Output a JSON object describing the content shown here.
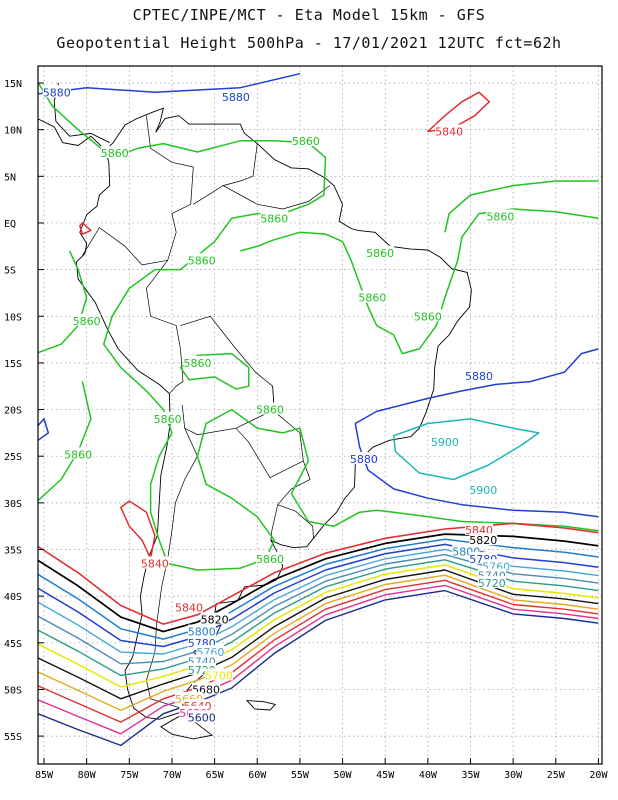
{
  "title_line1": "CPTEC/INPE/MCT -  Eta Model 15km - GFS",
  "title_line2": "Geopotential Height 500hPa - 17/01/2021 12UTC fct=62h",
  "lat_labels": [
    "15N",
    "10N",
    "5N",
    "EQ",
    "5S",
    "10S",
    "15S",
    "20S",
    "25S",
    "30S",
    "35S",
    "40S",
    "45S",
    "50S",
    "55S"
  ],
  "lon_labels": [
    "85W",
    "80W",
    "75W",
    "70W",
    "65W",
    "60W",
    "55W",
    "50W",
    "45W",
    "40W",
    "35W",
    "30W",
    "25W",
    "20W"
  ],
  "colors": {
    "5900": "#19b8b8",
    "5880": "#1f3fcf",
    "5860": "#22c422",
    "5840": "#e03030",
    "5820": "#000000",
    "5800": "#1f7fcf",
    "5780": "#1f3fcf",
    "5760": "#4aa8d8",
    "5740": "#4a8ab8",
    "5720": "#2a9a8a",
    "5700": "#e8e810",
    "5680": "#111111",
    "5660": "#e8a820",
    "5640": "#e03030",
    "5620": "#e03090",
    "5600": "#1a2a8a",
    "coast": "#000000"
  },
  "contour_labels": [
    {
      "text": "5880",
      "color_key": "5880",
      "lon": -83.5,
      "lat": 14.0
    },
    {
      "text": "5880",
      "color_key": "5880",
      "lon": -62.5,
      "lat": 13.5
    },
    {
      "text": "5840",
      "color_key": "5840",
      "lon": -37.5,
      "lat": 9.8
    },
    {
      "text": "5860",
      "color_key": "5860",
      "lon": -54.3,
      "lat": 8.8
    },
    {
      "text": "5860",
      "color_key": "5860",
      "lon": -76.7,
      "lat": 7.5
    },
    {
      "text": "5860",
      "color_key": "5860",
      "lon": -58.0,
      "lat": 0.5
    },
    {
      "text": "5860",
      "color_key": "5860",
      "lon": -31.5,
      "lat": 0.7
    },
    {
      "text": "5860",
      "color_key": "5860",
      "lon": -45.6,
      "lat": -3.2
    },
    {
      "text": "5860",
      "color_key": "5860",
      "lon": -66.5,
      "lat": -4.0
    },
    {
      "text": "5860",
      "color_key": "5860",
      "lon": -46.5,
      "lat": -8.0
    },
    {
      "text": "5860",
      "color_key": "5860",
      "lon": -80.0,
      "lat": -10.5
    },
    {
      "text": "5860",
      "color_key": "5860",
      "lon": -40.0,
      "lat": -10.0
    },
    {
      "text": "5860",
      "color_key": "5860",
      "lon": -67.0,
      "lat": -15.0
    },
    {
      "text": "5880",
      "color_key": "5880",
      "lon": -34.0,
      "lat": -16.4
    },
    {
      "text": "5860",
      "color_key": "5860",
      "lon": -70.5,
      "lat": -21.0
    },
    {
      "text": "5860",
      "color_key": "5860",
      "lon": -58.5,
      "lat": -20.0
    },
    {
      "text": "5900",
      "color_key": "5900",
      "lon": -38.0,
      "lat": -23.5
    },
    {
      "text": "5860",
      "color_key": "5860",
      "lon": -81.0,
      "lat": -24.8
    },
    {
      "text": "5880",
      "color_key": "5880",
      "lon": -47.5,
      "lat": -25.3
    },
    {
      "text": "5900",
      "color_key": "5900",
      "lon": -33.5,
      "lat": -28.6
    },
    {
      "text": "5840",
      "color_key": "5840",
      "lon": -34.0,
      "lat": -32.9
    },
    {
      "text": "5820",
      "color_key": "5820",
      "lon": -33.5,
      "lat": -34.0
    },
    {
      "text": "5800",
      "color_key": "5800",
      "lon": -35.5,
      "lat": -35.2
    },
    {
      "text": "5780",
      "color_key": "5780",
      "lon": -33.5,
      "lat": -36.0
    },
    {
      "text": "5760",
      "color_key": "5760",
      "lon": -32.0,
      "lat": -36.8
    },
    {
      "text": "5740",
      "color_key": "5740",
      "lon": -32.5,
      "lat": -37.8
    },
    {
      "text": "5720",
      "color_key": "5720",
      "lon": -32.5,
      "lat": -38.6
    },
    {
      "text": "5840",
      "color_key": "5840",
      "lon": -72.0,
      "lat": -36.5
    },
    {
      "text": "5860",
      "color_key": "5860",
      "lon": -58.5,
      "lat": -36.0
    },
    {
      "text": "5840",
      "color_key": "5840",
      "lon": -68.0,
      "lat": -41.2
    },
    {
      "text": "5820",
      "color_key": "5820",
      "lon": -65.0,
      "lat": -42.5
    },
    {
      "text": "5800",
      "color_key": "5800",
      "lon": -66.5,
      "lat": -43.8
    },
    {
      "text": "5780",
      "color_key": "5780",
      "lon": -66.5,
      "lat": -45.0
    },
    {
      "text": "5760",
      "color_key": "5760",
      "lon": -65.5,
      "lat": -46.0
    },
    {
      "text": "5740",
      "color_key": "5740",
      "lon": -66.5,
      "lat": -47.0
    },
    {
      "text": "5720",
      "color_key": "5720",
      "lon": -66.5,
      "lat": -47.9
    },
    {
      "text": "5700",
      "color_key": "5700",
      "lon": -64.5,
      "lat": -48.5
    },
    {
      "text": "5680",
      "color_key": "5680",
      "lon": -66.0,
      "lat": -50.0
    },
    {
      "text": "5660",
      "color_key": "5660",
      "lon": -68.0,
      "lat": -51.0
    },
    {
      "text": "5640",
      "color_key": "5640",
      "lon": -67.0,
      "lat": -51.8
    },
    {
      "text": "5620",
      "color_key": "5620",
      "lon": -67.5,
      "lat": -52.5
    },
    {
      "text": "5600",
      "color_key": "5600",
      "lon": -66.5,
      "lat": -53.0
    }
  ]
}
